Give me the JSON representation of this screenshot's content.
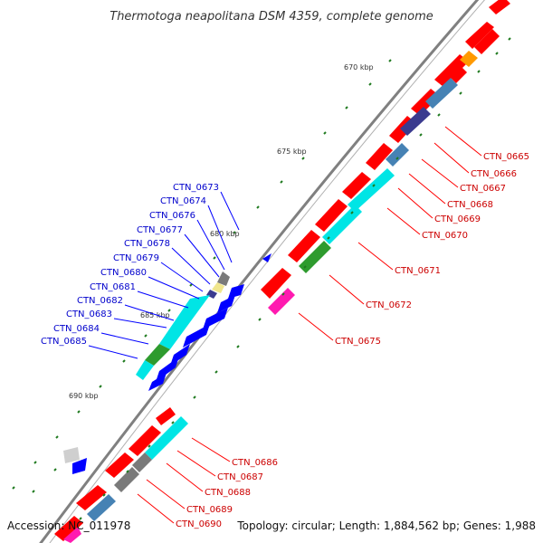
{
  "title": "Thermotoga neapolitana DSM 4359, complete genome",
  "footer": {
    "accession": "Accession: NC_011978",
    "summary": "Topology: circular; Length: 1,884,562 bp; Genes: 1,988"
  },
  "ticks": [
    "670 kbp",
    "675 kbp",
    "680 kbp",
    "685 kbp",
    "690 kbp"
  ],
  "colors": {
    "red": "#ff0000",
    "blue": "#0000ff",
    "cyan": "#00e5e5",
    "steelblue": "#4682b4",
    "darkslate": "#3b3b8f",
    "green": "#2e9b2e",
    "magenta": "#ff1ab0",
    "gray": "#7a7a7a",
    "lightgray": "#cfcfcf",
    "orange": "#ff9900",
    "khaki": "#f0e68c",
    "tick": "#1f7a1f",
    "backbone": "#808080"
  },
  "right_labels": [
    "CTN_0665",
    "CTN_0666",
    "CTN_0667",
    "CTN_0668",
    "CTN_0669",
    "CTN_0670",
    "CTN_0671",
    "CTN_0672",
    "CTN_0675",
    "CTN_0686",
    "CTN_0687",
    "CTN_0688",
    "CTN_0689",
    "CTN_0690"
  ],
  "left_labels": [
    "CTN_0673",
    "CTN_0674",
    "CTN_0676",
    "CTN_0677",
    "CTN_0678",
    "CTN_0679",
    "CTN_0680",
    "CTN_0681",
    "CTN_0682",
    "CTN_0683",
    "CTN_0684",
    "CTN_0685"
  ]
}
